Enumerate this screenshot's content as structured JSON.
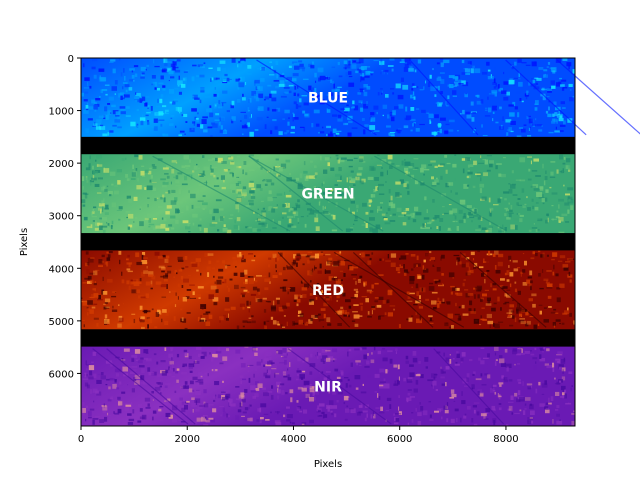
{
  "chart_data": {
    "type": "heatmap",
    "title": "",
    "xlabel": "Pixels",
    "ylabel": "Pixels",
    "xlim": [
      0,
      9300
    ],
    "ylim": [
      7000,
      0
    ],
    "x_ticks": [
      0,
      2000,
      4000,
      6000,
      8000
    ],
    "y_ticks": [
      0,
      1000,
      2000,
      3000,
      4000,
      5000,
      6000
    ],
    "grid": false,
    "legend": "none",
    "bands": [
      {
        "name": "BLUE",
        "y_range": [
          0,
          1500
        ],
        "colormap": "jet-blue",
        "colors": [
          "#0012ff",
          "#004cff",
          "#00a0ff",
          "#14e6ff"
        ]
      },
      {
        "name": "GREEN",
        "y_range": [
          1830,
          3330
        ],
        "colormap": "summer-viridis",
        "colors": [
          "#1e8a6e",
          "#3aa874",
          "#6cc67a",
          "#c8e06a"
        ]
      },
      {
        "name": "RED",
        "y_range": [
          3660,
          5160
        ],
        "colormap": "hot",
        "colors": [
          "#3a0000",
          "#8a0a00",
          "#d03a00",
          "#ff9a30"
        ]
      },
      {
        "name": "NIR",
        "y_range": [
          5490,
          7000
        ],
        "colormap": "plasma-purple",
        "colors": [
          "#4a0aa0",
          "#6a1ab4",
          "#8a30c0",
          "#e090a0"
        ]
      }
    ],
    "gap_color": "#000000"
  }
}
